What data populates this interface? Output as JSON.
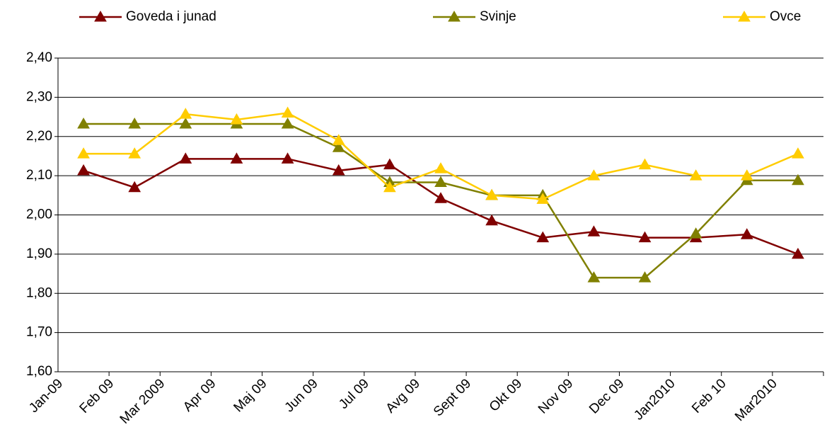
{
  "chart_data": {
    "type": "line",
    "categories": [
      "Jan-09",
      "Feb 09",
      "Mar 2009",
      "Apr 09",
      "Maj 09",
      "Jun 09",
      "Jul 09",
      "Avg 09",
      "Sept 09",
      "Okt 09",
      "Nov 09",
      "Dec 09",
      "Jan2010",
      "Feb 10",
      "Mar2010"
    ],
    "series": [
      {
        "name": "Goveda i junad",
        "color": "#800000",
        "values": [
          2.113,
          2.07,
          2.143,
          2.143,
          2.143,
          2.113,
          2.128,
          2.042,
          1.985,
          1.942,
          1.957,
          1.942,
          1.942,
          1.95,
          1.9
        ]
      },
      {
        "name": "Svinje",
        "color": "#808000",
        "values": [
          2.232,
          2.232,
          2.232,
          2.232,
          2.232,
          2.172,
          2.083,
          2.083,
          2.05,
          2.05,
          1.84,
          1.84,
          1.952,
          2.088,
          2.088
        ]
      },
      {
        "name": "Ovce",
        "color": "#ffcc00",
        "values": [
          2.156,
          2.156,
          2.257,
          2.243,
          2.26,
          2.19,
          2.07,
          2.118,
          2.05,
          2.04,
          2.1,
          2.128,
          2.1,
          2.1,
          2.156
        ]
      }
    ],
    "ylim": [
      1.6,
      2.4
    ],
    "yticks": [
      {
        "value": 1.6,
        "label": "1,60"
      },
      {
        "value": 1.7,
        "label": "1,70"
      },
      {
        "value": 1.8,
        "label": "1,80"
      },
      {
        "value": 1.9,
        "label": "1,90"
      },
      {
        "value": 2.0,
        "label": "2,00"
      },
      {
        "value": 2.1,
        "label": "2,10"
      },
      {
        "value": 2.2,
        "label": "2,20"
      },
      {
        "value": 2.3,
        "label": "2,30"
      },
      {
        "value": 2.4,
        "label": "2,40"
      }
    ],
    "grid": true,
    "legend": "top"
  }
}
